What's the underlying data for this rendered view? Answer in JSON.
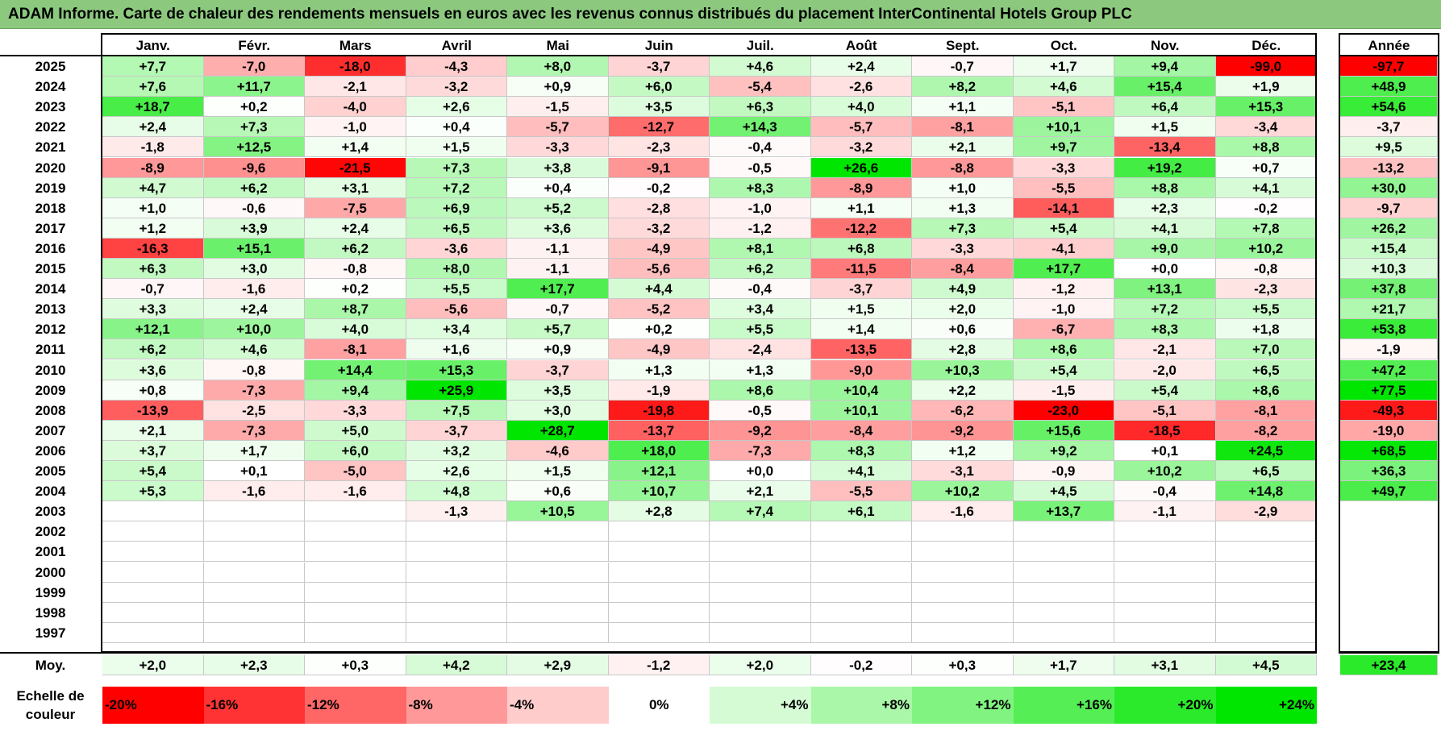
{
  "title": "ADAM Informe. Carte de chaleur des rendements mensuels en euros avec les revenus connus distribués du placement InterContinental Hotels Group PLC",
  "months": [
    "Janv.",
    "Févr.",
    "Mars",
    "Avril",
    "Mai",
    "Juin",
    "Juil.",
    "Août",
    "Sept.",
    "Oct.",
    "Nov.",
    "Déc."
  ],
  "annual_header": "Année",
  "average_label": "Moy.",
  "scale_label": "Echelle de couleur",
  "colors": {
    "title_bar": "#8cc97f",
    "strong_red": "#ff0000",
    "strong_green": "#00e000",
    "neutral": "#ffffff"
  },
  "chart_data": {
    "type": "heatmap",
    "title": "ADAM Informe. Carte de chaleur des rendements mensuels en euros avec les revenus connus distribués du placement InterContinental Hotels Group PLC",
    "x_categories": [
      "Janv.",
      "Févr.",
      "Mars",
      "Avril",
      "Mai",
      "Juin",
      "Juil.",
      "Août",
      "Sept.",
      "Oct.",
      "Nov.",
      "Déc."
    ],
    "rows": [
      {
        "year": "2025",
        "values": [
          "+7,7",
          "-7,0",
          "-18,0",
          "-4,3",
          "+8,0",
          "-3,7",
          "+4,6",
          "+2,4",
          "-0,7",
          "+1,7",
          "+9,4",
          "-99,0"
        ],
        "annual": "-97,7"
      },
      {
        "year": "2024",
        "values": [
          "+7,6",
          "+11,7",
          "-2,1",
          "-3,2",
          "+0,9",
          "+6,0",
          "-5,4",
          "-2,6",
          "+8,2",
          "+4,6",
          "+15,4",
          "+1,9"
        ],
        "annual": "+48,9"
      },
      {
        "year": "2023",
        "values": [
          "+18,7",
          "+0,2",
          "-4,0",
          "+2,6",
          "-1,5",
          "+3,5",
          "+6,3",
          "+4,0",
          "+1,1",
          "-5,1",
          "+6,4",
          "+15,3"
        ],
        "annual": "+54,6"
      },
      {
        "year": "2022",
        "values": [
          "+2,4",
          "+7,3",
          "-1,0",
          "+0,4",
          "-5,7",
          "-12,7",
          "+14,3",
          "-5,7",
          "-8,1",
          "+10,1",
          "+1,5",
          "-3,4"
        ],
        "annual": "-3,7"
      },
      {
        "year": "2021",
        "values": [
          "-1,8",
          "+12,5",
          "+1,4",
          "+1,5",
          "-3,3",
          "-2,3",
          "-0,4",
          "-3,2",
          "+2,1",
          "+9,7",
          "-13,4",
          "+8,8"
        ],
        "annual": "+9,5"
      },
      {
        "year": "2020",
        "values": [
          "-8,9",
          "-9,6",
          "-21,5",
          "+7,3",
          "+3,8",
          "-9,1",
          "-0,5",
          "+26,6",
          "-8,8",
          "-3,3",
          "+19,2",
          "+0,7"
        ],
        "annual": "-13,2"
      },
      {
        "year": "2019",
        "values": [
          "+4,7",
          "+6,2",
          "+3,1",
          "+7,2",
          "+0,4",
          "-0,2",
          "+8,3",
          "-8,9",
          "+1,0",
          "-5,5",
          "+8,8",
          "+4,1"
        ],
        "annual": "+30,0"
      },
      {
        "year": "2018",
        "values": [
          "+1,0",
          "-0,6",
          "-7,5",
          "+6,9",
          "+5,2",
          "-2,8",
          "-1,0",
          "+1,1",
          "+1,3",
          "-14,1",
          "+2,3",
          "-0,2"
        ],
        "annual": "-9,7"
      },
      {
        "year": "2017",
        "values": [
          "+1,2",
          "+3,9",
          "+2,4",
          "+6,5",
          "+3,6",
          "-3,2",
          "-1,2",
          "-12,2",
          "+7,3",
          "+5,4",
          "+4,1",
          "+7,8"
        ],
        "annual": "+26,2"
      },
      {
        "year": "2016",
        "values": [
          "-16,3",
          "+15,1",
          "+6,2",
          "-3,6",
          "-1,1",
          "-4,9",
          "+8,1",
          "+6,8",
          "-3,3",
          "-4,1",
          "+9,0",
          "+10,2"
        ],
        "annual": "+15,4"
      },
      {
        "year": "2015",
        "values": [
          "+6,3",
          "+3,0",
          "-0,8",
          "+8,0",
          "-1,1",
          "-5,6",
          "+6,2",
          "-11,5",
          "-8,4",
          "+17,7",
          "+0,0",
          "-0,8"
        ],
        "annual": "+10,3"
      },
      {
        "year": "2014",
        "values": [
          "-0,7",
          "-1,6",
          "+0,2",
          "+5,5",
          "+17,7",
          "+4,4",
          "-0,4",
          "-3,7",
          "+4,9",
          "-1,2",
          "+13,1",
          "-2,3"
        ],
        "annual": "+37,8"
      },
      {
        "year": "2013",
        "values": [
          "+3,3",
          "+2,4",
          "+8,7",
          "-5,6",
          "-0,7",
          "-5,2",
          "+3,4",
          "+1,5",
          "+2,0",
          "-1,0",
          "+7,2",
          "+5,5"
        ],
        "annual": "+21,7"
      },
      {
        "year": "2012",
        "values": [
          "+12,1",
          "+10,0",
          "+4,0",
          "+3,4",
          "+5,7",
          "+0,2",
          "+5,5",
          "+1,4",
          "+0,6",
          "-6,7",
          "+8,3",
          "+1,8"
        ],
        "annual": "+53,8"
      },
      {
        "year": "2011",
        "values": [
          "+6,2",
          "+4,6",
          "-8,1",
          "+1,6",
          "+0,9",
          "-4,9",
          "-2,4",
          "-13,5",
          "+2,8",
          "+8,6",
          "-2,1",
          "+7,0"
        ],
        "annual": "-1,9"
      },
      {
        "year": "2010",
        "values": [
          "+3,6",
          "-0,8",
          "+14,4",
          "+15,3",
          "-3,7",
          "+1,3",
          "+1,3",
          "-9,0",
          "+10,3",
          "+5,4",
          "-2,0",
          "+6,5"
        ],
        "annual": "+47,2"
      },
      {
        "year": "2009",
        "values": [
          "+0,8",
          "-7,3",
          "+9,4",
          "+25,9",
          "+3,5",
          "-1,9",
          "+8,6",
          "+10,4",
          "+2,2",
          "-1,5",
          "+5,4",
          "+8,6"
        ],
        "annual": "+77,5"
      },
      {
        "year": "2008",
        "values": [
          "-13,9",
          "-2,5",
          "-3,3",
          "+7,5",
          "+3,0",
          "-19,8",
          "-0,5",
          "+10,1",
          "-6,2",
          "-23,0",
          "-5,1",
          "-8,1"
        ],
        "annual": "-49,3"
      },
      {
        "year": "2007",
        "values": [
          "+2,1",
          "-7,3",
          "+5,0",
          "-3,7",
          "+28,7",
          "-13,7",
          "-9,2",
          "-8,4",
          "-9,2",
          "+15,6",
          "-18,5",
          "-8,2"
        ],
        "annual": "-19,0"
      },
      {
        "year": "2006",
        "values": [
          "+3,7",
          "+1,7",
          "+6,0",
          "+3,2",
          "-4,6",
          "+18,0",
          "-7,3",
          "+8,3",
          "+1,2",
          "+9,2",
          "+0,1",
          "+24,5"
        ],
        "annual": "+68,5"
      },
      {
        "year": "2005",
        "values": [
          "+5,4",
          "+0,1",
          "-5,0",
          "+2,6",
          "+1,5",
          "+12,1",
          "+0,0",
          "+4,1",
          "-3,1",
          "-0,9",
          "+10,2",
          "+6,5"
        ],
        "annual": "+36,3"
      },
      {
        "year": "2004",
        "values": [
          "+5,3",
          "-1,6",
          "-1,6",
          "+4,8",
          "+0,6",
          "+10,7",
          "+2,1",
          "-5,5",
          "+10,2",
          "+4,5",
          "-0,4",
          "+14,8"
        ],
        "annual": "+49,7"
      },
      {
        "year": "2003",
        "values": [
          "",
          "",
          "",
          "-1,3",
          "+10,5",
          "+2,8",
          "+7,4",
          "+6,1",
          "-1,6",
          "+13,7",
          "-1,1",
          "-2,9"
        ],
        "annual": ""
      },
      {
        "year": "2002",
        "values": [
          "",
          "",
          "",
          "",
          "",
          "",
          "",
          "",
          "",
          "",
          "",
          ""
        ],
        "annual": ""
      },
      {
        "year": "2001",
        "values": [
          "",
          "",
          "",
          "",
          "",
          "",
          "",
          "",
          "",
          "",
          "",
          ""
        ],
        "annual": ""
      },
      {
        "year": "2000",
        "values": [
          "",
          "",
          "",
          "",
          "",
          "",
          "",
          "",
          "",
          "",
          "",
          ""
        ],
        "annual": ""
      },
      {
        "year": "1999",
        "values": [
          "",
          "",
          "",
          "",
          "",
          "",
          "",
          "",
          "",
          "",
          "",
          ""
        ],
        "annual": ""
      },
      {
        "year": "1998",
        "values": [
          "",
          "",
          "",
          "",
          "",
          "",
          "",
          "",
          "",
          "",
          "",
          ""
        ],
        "annual": ""
      },
      {
        "year": "1997",
        "values": [
          "",
          "",
          "",
          "",
          "",
          "",
          "",
          "",
          "",
          "",
          "",
          ""
        ],
        "annual": ""
      }
    ],
    "average": {
      "values": [
        "+2,0",
        "+2,3",
        "+0,3",
        "+4,2",
        "+2,9",
        "-1,2",
        "+2,0",
        "-0,2",
        "+0,3",
        "+1,7",
        "+3,1",
        "+4,5"
      ],
      "annual": "+23,4"
    },
    "color_scale": [
      "-20%",
      "-16%",
      "-12%",
      "-8%",
      "-4%",
      "0%",
      "+4%",
      "+8%",
      "+12%",
      "+16%",
      "+20%",
      "+24%"
    ]
  }
}
